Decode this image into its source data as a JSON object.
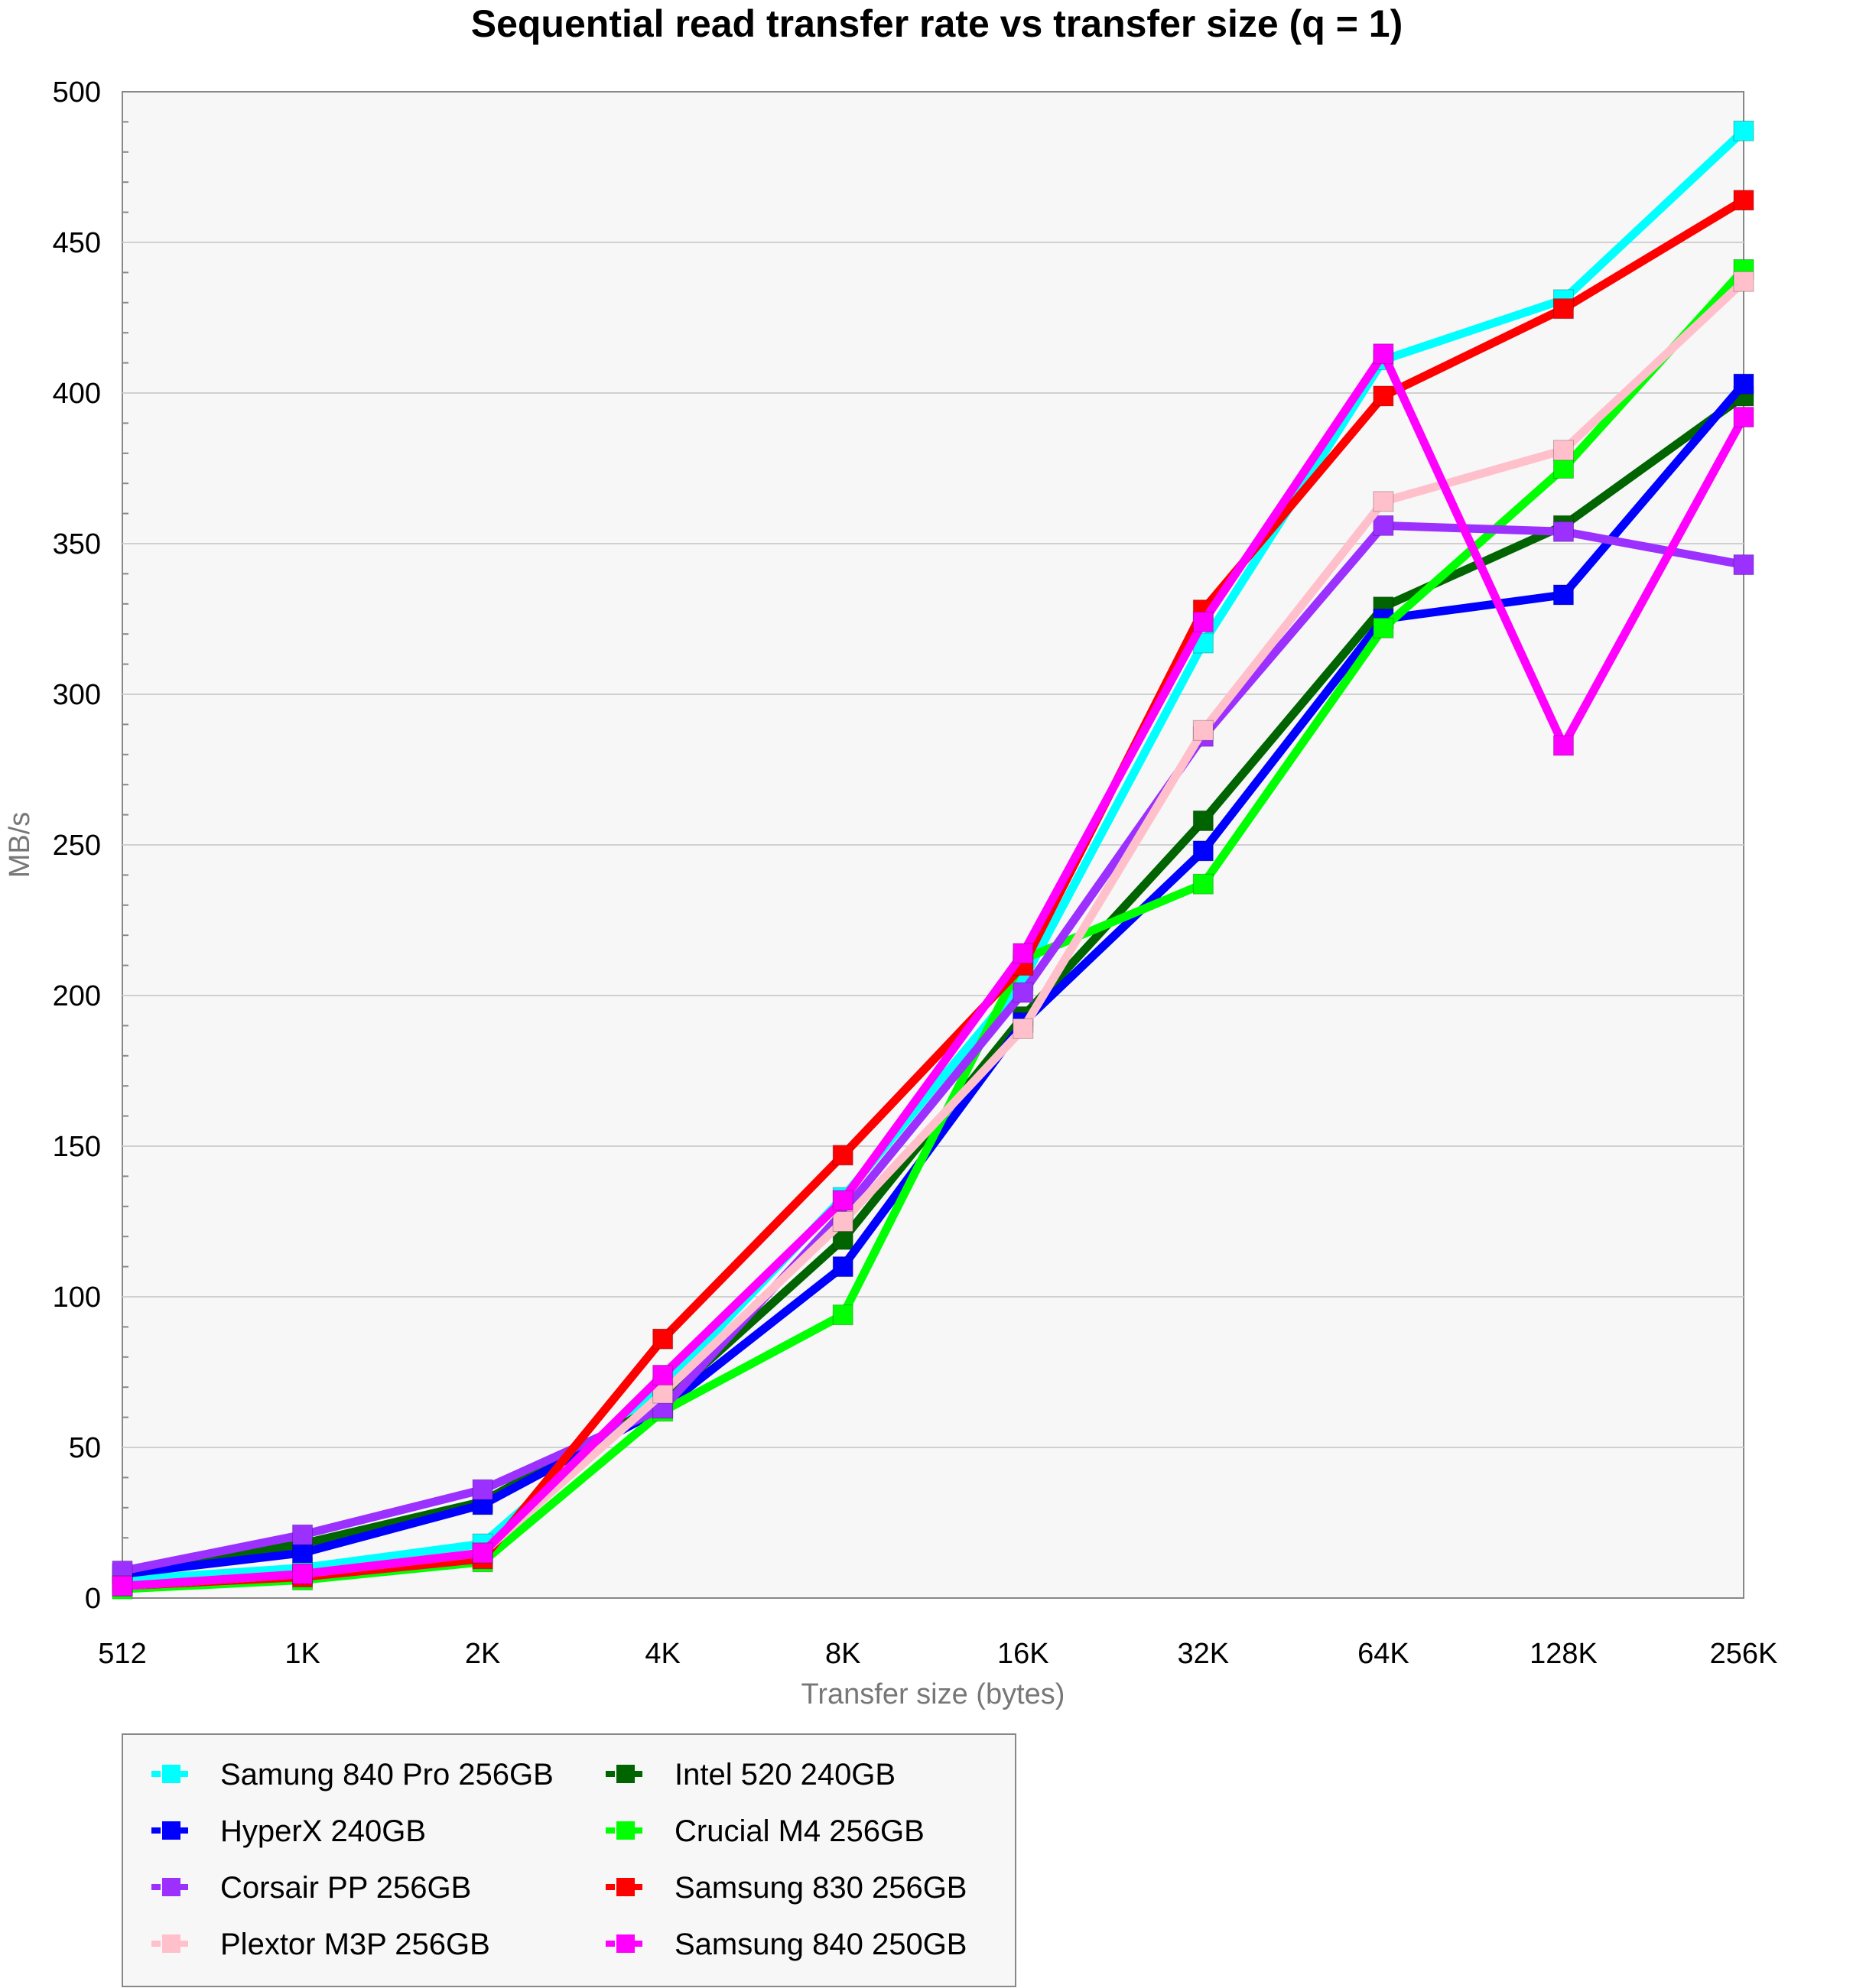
{
  "chart_data": {
    "type": "line",
    "title": "Sequential read transfer rate vs transfer size (q = 1)",
    "xlabel": "Transfer size (bytes)",
    "ylabel": "MB/s",
    "categories": [
      "512",
      "1K",
      "2K",
      "4K",
      "8K",
      "16K",
      "32K",
      "64K",
      "128K",
      "256K"
    ],
    "ylim": [
      0,
      500
    ],
    "yticks": [
      0,
      50,
      100,
      150,
      200,
      250,
      300,
      350,
      400,
      450,
      500
    ],
    "grid": true,
    "legend_position": "bottom-left",
    "series": [
      {
        "name": "Samung 840 Pro 256GB",
        "color": "#00FFFF",
        "values": [
          6,
          10,
          18,
          70,
          133,
          205,
          317,
          411,
          431,
          487
        ]
      },
      {
        "name": "Intel 520 240GB",
        "color": "#006400",
        "values": [
          8,
          18,
          32,
          65,
          119,
          193,
          258,
          329,
          356,
          399
        ]
      },
      {
        "name": "HyperX 240GB",
        "color": "#0000FF",
        "values": [
          8,
          15,
          31,
          63,
          110,
          191,
          248,
          325,
          333,
          403
        ]
      },
      {
        "name": "Crucial M4 256GB",
        "color": "#00FF00",
        "values": [
          3,
          6,
          12,
          62,
          94,
          212,
          237,
          322,
          375,
          441
        ]
      },
      {
        "name": "Corsair PP 256GB",
        "color": "#9B30FF",
        "values": [
          9,
          21,
          36,
          63,
          128,
          201,
          286,
          356,
          354,
          343
        ]
      },
      {
        "name": "Samsung 830 256GB",
        "color": "#FF0000",
        "values": [
          4,
          7,
          13,
          86,
          147,
          210,
          328,
          399,
          428,
          464
        ]
      },
      {
        "name": "Plextor M3P 256GB",
        "color": "#FFC0CB",
        "values": [
          4,
          8,
          15,
          68,
          125,
          189,
          288,
          364,
          381,
          437
        ]
      },
      {
        "name": "Samsung 840 250GB",
        "color": "#FF00FF",
        "values": [
          4,
          8,
          15,
          74,
          132,
          214,
          324,
          413,
          283,
          392
        ]
      }
    ]
  }
}
